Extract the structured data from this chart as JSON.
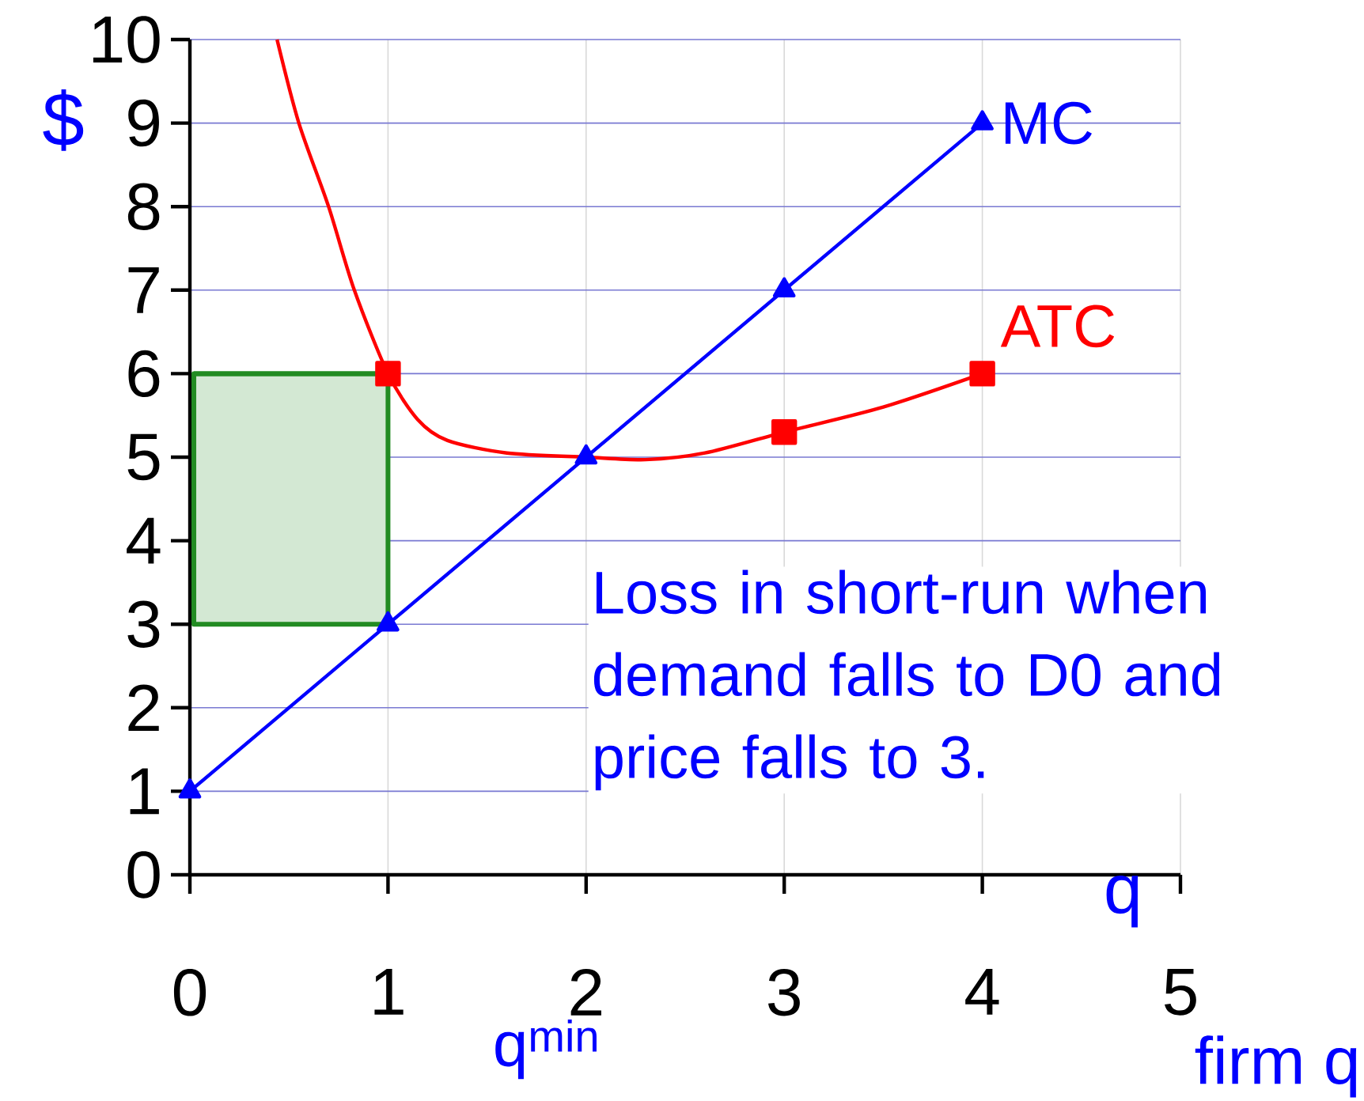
{
  "chart_data": {
    "type": "line",
    "ylabel": "$",
    "xlabel": "firm q",
    "annotations": [
      "Loss in short-run when demand falls to D0 and price falls to 3.",
      "q",
      "q$^{min}$"
    ],
    "xlim": [
      0,
      5
    ],
    "ylim": [
      0,
      10
    ],
    "xticks": [
      0,
      1,
      2,
      3,
      4,
      5
    ],
    "yticks": [
      0,
      1,
      2,
      3,
      4,
      5,
      6,
      7,
      8,
      9,
      10
    ],
    "grid": true,
    "series": [
      {
        "name": "MC",
        "color": "#0000ff",
        "x": [
          0,
          1,
          2,
          3,
          4
        ],
        "values": [
          1,
          3,
          5,
          7,
          9
        ],
        "marker": "triangle"
      },
      {
        "name": "ATC",
        "color": "#ff0000",
        "x": [
          0.44,
          0.55,
          0.7,
          0.83,
          1,
          1.15,
          1.3,
          1.6,
          2,
          2.3,
          2.6,
          3,
          3.5,
          4
        ],
        "values": [
          10,
          9,
          8,
          7,
          6,
          5.45,
          5.2,
          5.05,
          5,
          4.97,
          5.05,
          5.3,
          5.6,
          6
        ],
        "marker": "none"
      },
      {
        "type": "scatter",
        "color": "#ff0000",
        "x": [
          1,
          3,
          4
        ],
        "values": [
          6,
          5.3,
          6
        ],
        "marker": "square"
      },
      {
        "color": "#228b22",
        "x": [
          0.02,
          1
        ],
        "values": [
          6,
          6
        ],
        "lower": [
          3,
          3
        ],
        "upper": [
          6,
          6
        ]
      }
    ]
  }
}
